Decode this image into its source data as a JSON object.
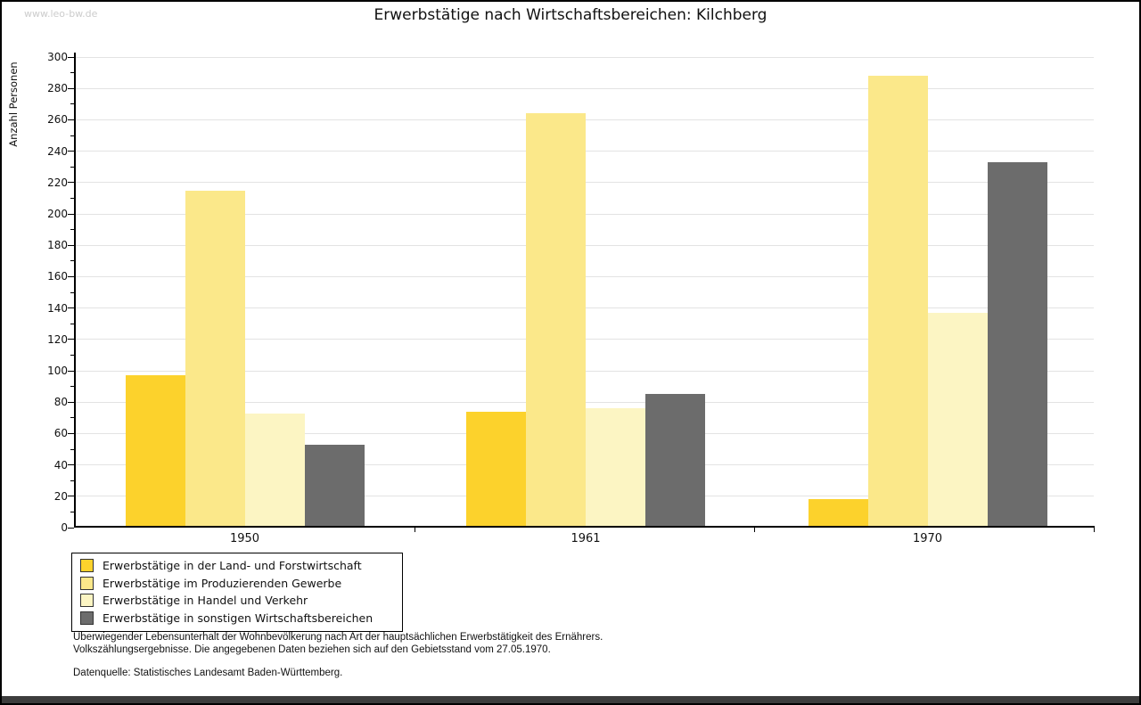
{
  "page": {
    "watermark": "www.leo-bw.de",
    "title": "Erwerbstätige nach Wirtschaftsbereichen: Kilchberg"
  },
  "chart_data": {
    "type": "bar",
    "title": "Erwerbstätige nach Wirtschaftsbereichen: Kilchberg",
    "xlabel": "",
    "ylabel": "Anzahl Personen",
    "ylim": [
      0,
      300
    ],
    "ytick_step": 20,
    "yminor_tick_step": 10,
    "grid": true,
    "legend_position": "bottom-left",
    "categories": [
      "1950",
      "1961",
      "1970"
    ],
    "series": [
      {
        "name": "Erwerbstätige in der Land- und Forstwirtschaft",
        "color": "#fcd22c",
        "values": [
          97,
          74,
          18
        ]
      },
      {
        "name": "Erwerbstätige im Produzierenden Gewerbe",
        "color": "#fbe88a",
        "values": [
          215,
          264,
          288
        ]
      },
      {
        "name": "Erwerbstätige in Handel und Verkehr",
        "color": "#fcf5c3",
        "values": [
          73,
          76,
          137
        ]
      },
      {
        "name": "Erwerbstätige in sonstigen Wirtschaftsbereichen",
        "color": "#6c6c6c",
        "values": [
          53,
          85,
          233
        ]
      }
    ]
  },
  "footer": {
    "line1": "Überwiegender Lebensunterhalt der Wohnbevölkerung nach Art der hauptsächlichen Erwerbstätigkeit des Ernährers.",
    "line2": "Volkszählungsergebnisse. Die angegebenen Daten beziehen sich auf den Gebietsstand vom 27.05.1970.",
    "source": "Datenquelle: Statistisches Landesamt Baden-Württemberg."
  },
  "colors": {
    "grid": "#e3e3e3",
    "axis": "#000000",
    "text": "#111111",
    "watermark": "#cccccc",
    "background": "#ffffff",
    "bottom_bar": "#3d3d3d"
  }
}
